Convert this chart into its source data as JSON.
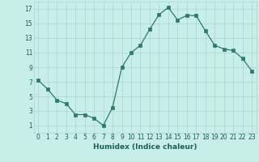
{
  "x": [
    0,
    1,
    2,
    3,
    4,
    5,
    6,
    7,
    8,
    9,
    10,
    11,
    12,
    13,
    14,
    15,
    16,
    17,
    18,
    19,
    20,
    21,
    22,
    23
  ],
  "y": [
    7.2,
    6.0,
    4.5,
    4.0,
    2.5,
    2.5,
    2.0,
    1.0,
    3.5,
    9.0,
    11.0,
    12.0,
    14.2,
    16.2,
    17.2,
    15.5,
    16.1,
    16.1,
    14.0,
    12.0,
    11.5,
    11.3,
    10.2,
    8.5
  ],
  "xlabel": "Humidex (Indice chaleur)",
  "ylim": [
    0,
    18
  ],
  "xlim": [
    -0.5,
    23.5
  ],
  "yticks": [
    1,
    3,
    5,
    7,
    9,
    11,
    13,
    15,
    17
  ],
  "xticks": [
    0,
    1,
    2,
    3,
    4,
    5,
    6,
    7,
    8,
    9,
    10,
    11,
    12,
    13,
    14,
    15,
    16,
    17,
    18,
    19,
    20,
    21,
    22,
    23
  ],
  "line_color": "#2d7a6e",
  "marker_color": "#2d7a6e",
  "bg_color": "#c8eeea",
  "grid_color": "#a8d5d0",
  "label_color": "#1a5f5a",
  "tick_fontsize": 5.5,
  "xlabel_fontsize": 6.5,
  "linewidth": 0.9,
  "markersize": 2.2
}
